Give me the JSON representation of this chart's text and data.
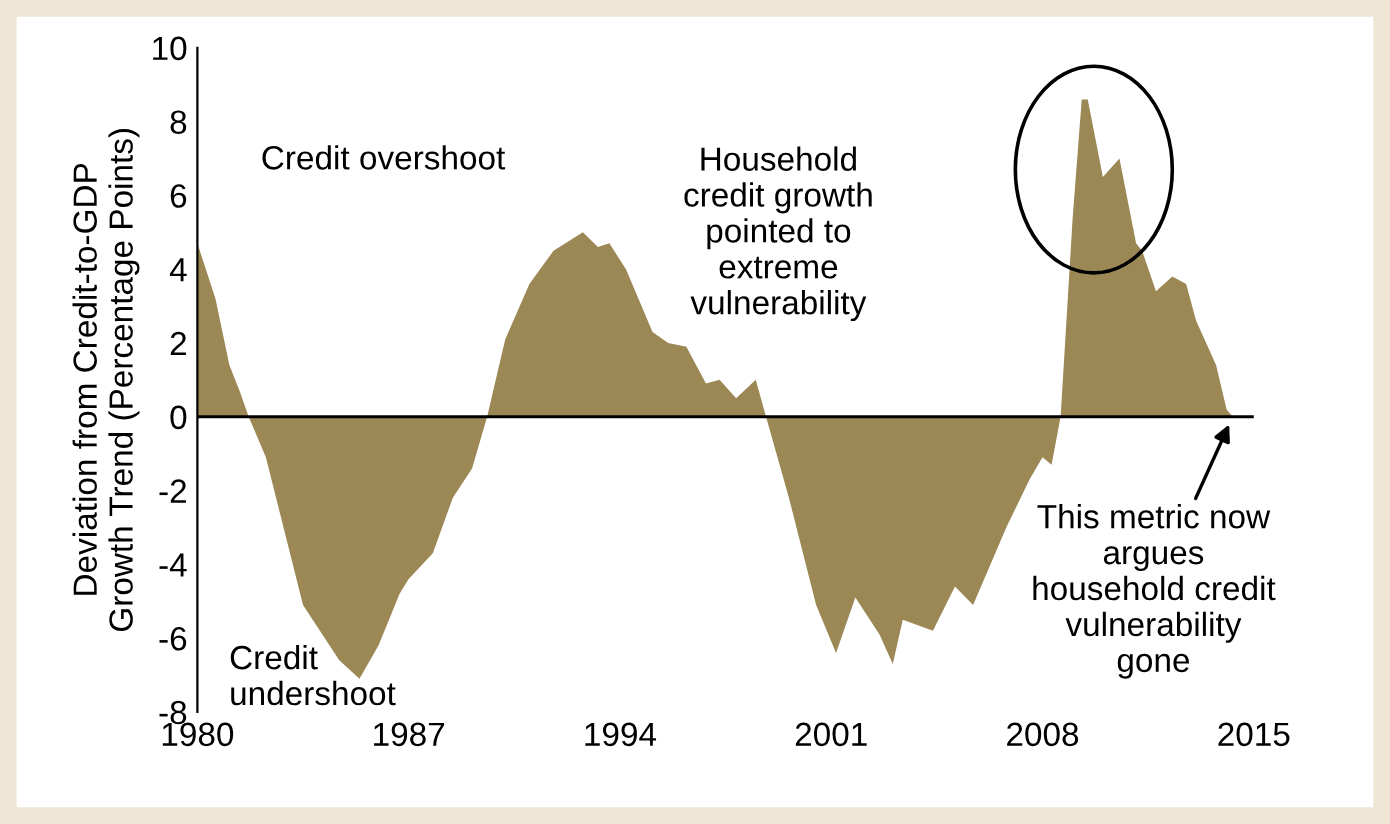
{
  "chart_data": {
    "type": "area",
    "ylabel": "Deviation from Credit-to-GDP\nGrowth Trend (Percentage Points)",
    "x": [
      1980.0,
      1980.6,
      1981.06,
      1981.4,
      1981.7,
      1982.27,
      1983.5,
      1984.7,
      1985.37,
      1986.0,
      1986.7,
      1987.0,
      1987.8,
      1988.46,
      1989.1,
      1989.6,
      1990.2,
      1991.0,
      1991.8,
      1992.77,
      1993.27,
      1993.65,
      1994.2,
      1995.08,
      1995.6,
      1996.2,
      1996.85,
      1997.3,
      1997.85,
      1998.5,
      1998.84,
      1999.6,
      2000.5,
      2001.16,
      2001.8,
      2002.6,
      2003.04,
      2003.37,
      2004.37,
      2005.1,
      2005.7,
      2006.8,
      2007.57,
      2008.0,
      2008.3,
      2008.6,
      2009.0,
      2009.3,
      2009.5,
      2010.0,
      2010.55,
      2011.1,
      2011.3,
      2011.76,
      2012.3,
      2012.76,
      2013.09,
      2013.75,
      2014.1,
      2014.3
    ],
    "values": [
      4.7,
      3.2,
      1.4,
      0.7,
      0.0,
      -1.1,
      -5.1,
      -6.6,
      -7.1,
      -6.2,
      -4.8,
      -4.4,
      -3.7,
      -2.2,
      -1.4,
      0.0,
      2.1,
      3.6,
      4.5,
      5.0,
      4.6,
      4.7,
      4.0,
      2.3,
      2.0,
      1.9,
      0.9,
      1.0,
      0.5,
      1.0,
      0.0,
      -2.2,
      -5.1,
      -6.4,
      -4.9,
      -5.9,
      -6.7,
      -5.5,
      -5.8,
      -4.6,
      -5.1,
      -3.0,
      -1.7,
      -1.1,
      -1.3,
      0.0,
      5.4,
      8.6,
      8.6,
      6.5,
      7.0,
      4.7,
      4.5,
      3.4,
      3.8,
      3.6,
      2.6,
      1.4,
      0.2,
      0.0
    ],
    "color": "#9c8855",
    "xlim": [
      1980,
      2015
    ],
    "xticks": [
      1980,
      1987,
      1994,
      2001,
      2008,
      2015
    ],
    "ylim": [
      -8,
      10
    ],
    "yticks": [
      -8,
      -6,
      -4,
      -2,
      0,
      2,
      4,
      6,
      8,
      10
    ],
    "grid": false,
    "legend": false,
    "ref_lines": [
      {
        "axis": "y",
        "value": 0,
        "color": "#000000"
      }
    ],
    "annotations": [
      "Credit overshoot",
      "Credit\nundershoot",
      "Household\ncredit growth\npointed to\nextreme\nvulnerability",
      {
        "text": "This metric now\nargues\nhousehold credit\nvulnerability\ngone",
        "x": 2014.3,
        "y": 0
      }
    ]
  }
}
